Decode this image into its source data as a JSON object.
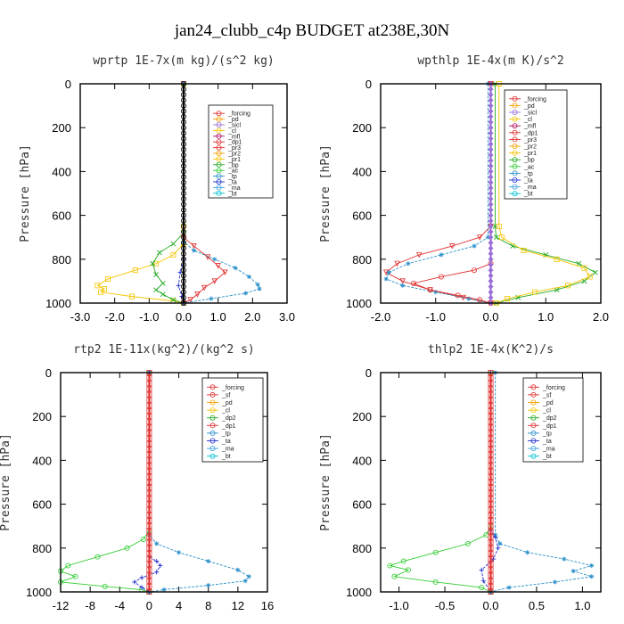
{
  "figure_title": "jan24_clubb_c4p  BUDGET at238E,30N",
  "chart_data": [
    {
      "type": "line",
      "title": "wprtp  1E-7x(m kg)/(s^2 kg)",
      "ylabel": "Pressure [hPa]",
      "xlim": [
        -3.0,
        3.0
      ],
      "ylim": [
        1000,
        0
      ],
      "xticks": [
        "-3.0",
        "-2.0",
        "-1.0",
        "0.0",
        "1.0",
        "2.0",
        "3.0"
      ],
      "xtick_values": [
        -3,
        -2,
        -1,
        0,
        1,
        2,
        3
      ],
      "yticks": [
        "0",
        "200",
        "400",
        "600",
        "800",
        "1000"
      ],
      "ytick_values": [
        0,
        200,
        400,
        600,
        800,
        1000
      ],
      "legend": [
        "_forcing",
        "_pd",
        "_sicl",
        "_cl",
        "_mfl",
        "_dp1",
        "_pr3",
        "_pr2",
        "_pr1",
        "_bp",
        "_ac",
        "_tp",
        "_ta",
        "_ma",
        "_bt"
      ],
      "series": [
        {
          "name": "_pr1",
          "color": "#f5c400",
          "marker": "square",
          "x": [
            0,
            0,
            0,
            -0.3,
            -0.8,
            -1.4,
            -2.2,
            -2.5,
            -2.3,
            -2.4,
            -1.5,
            -0.3,
            0
          ],
          "y": [
            0,
            650,
            730,
            780,
            820,
            850,
            890,
            920,
            935,
            950,
            970,
            990,
            1000
          ]
        },
        {
          "name": "_ac",
          "color": "#22aa22",
          "marker": "x",
          "x": [
            0,
            0,
            -0.3,
            -0.7,
            -0.9,
            -0.8,
            -0.6,
            -0.8,
            -0.6,
            -0.3,
            0
          ],
          "y": [
            0,
            680,
            730,
            770,
            820,
            870,
            910,
            940,
            960,
            985,
            1000
          ]
        },
        {
          "name": "_pr3",
          "color": "#e03030",
          "marker": "triangle-down",
          "x": [
            0,
            0,
            0.3,
            0.7,
            1.0,
            1.2,
            0.9,
            0.6,
            0.4,
            0.2,
            0
          ],
          "y": [
            0,
            700,
            740,
            790,
            830,
            860,
            900,
            930,
            960,
            985,
            1000
          ]
        },
        {
          "name": "_tp",
          "color": "#2a8fc8",
          "marker": "star",
          "x": [
            0,
            0,
            0.3,
            0.9,
            1.5,
            1.9,
            2.15,
            2.2,
            1.8,
            0.8,
            0
          ],
          "y": [
            0,
            720,
            760,
            800,
            840,
            880,
            915,
            935,
            955,
            980,
            1000
          ]
        },
        {
          "name": "_ta",
          "color": "#2030d0",
          "marker": "plus",
          "x": [
            0,
            0,
            -0.1,
            -0.15,
            -0.05,
            0
          ],
          "y": [
            0,
            800,
            860,
            920,
            970,
            1000
          ]
        },
        {
          "name": "_bt",
          "color": "#000000",
          "marker": "circle-open",
          "x": [
            0,
            0
          ],
          "y": [
            0,
            1000
          ]
        }
      ]
    },
    {
      "type": "line",
      "title": "wpthlp  1E-4x(m K)/s^2",
      "ylabel": "Pressure [hPa]",
      "xlim": [
        -2.0,
        2.0
      ],
      "ylim": [
        1000,
        0
      ],
      "xticks": [
        "-2.0",
        "-1.0",
        "0.0",
        "1.0",
        "2.0"
      ],
      "xtick_values": [
        -2,
        -1,
        0,
        1,
        2
      ],
      "yticks": [
        "0",
        "200",
        "400",
        "600",
        "800",
        "1000"
      ],
      "ytick_values": [
        0,
        200,
        400,
        600,
        800,
        1000
      ],
      "legend": [
        "_forcing",
        "_pd",
        "_sicl",
        "_cl",
        "_mfl",
        "_dp1",
        "_pr3",
        "_pr2",
        "_pr1",
        "_bp",
        "_ac",
        "_tp",
        "_ta",
        "_ma",
        "_bt"
      ],
      "series": [
        {
          "name": "_ac",
          "color": "#22aa22",
          "marker": "x",
          "x": [
            0.08,
            0.08,
            0.1,
            0.4,
            1.0,
            1.6,
            1.9,
            1.7,
            1.2,
            0.5,
            0.1
          ],
          "y": [
            0,
            650,
            700,
            740,
            780,
            820,
            860,
            900,
            940,
            975,
            1000
          ]
        },
        {
          "name": "_pr1",
          "color": "#f5c400",
          "marker": "square",
          "x": [
            0.15,
            0.15,
            0.2,
            0.6,
            1.2,
            1.7,
            1.8,
            1.4,
            0.8,
            0.3,
            0.1
          ],
          "y": [
            0,
            650,
            700,
            760,
            800,
            840,
            880,
            920,
            950,
            980,
            1000
          ]
        },
        {
          "name": "_pr3",
          "color": "#e03030",
          "marker": "triangle-down",
          "x": [
            0,
            0,
            -0.2,
            -0.7,
            -1.3,
            -1.7,
            -1.9,
            -1.6,
            -1.1,
            -0.5,
            0
          ],
          "y": [
            0,
            650,
            700,
            740,
            780,
            820,
            860,
            900,
            940,
            975,
            1000
          ]
        },
        {
          "name": "_tp",
          "color": "#2a8fc8",
          "marker": "star",
          "x": [
            -0.05,
            -0.05,
            -0.3,
            -0.9,
            -1.5,
            -1.85,
            -1.9,
            -1.6,
            -1.0,
            -0.4,
            0
          ],
          "y": [
            0,
            700,
            740,
            780,
            820,
            860,
            890,
            920,
            950,
            980,
            1000
          ]
        },
        {
          "name": "_dp1",
          "color": "#e03030",
          "marker": "circle-open",
          "x": [
            0,
            0,
            -0.3,
            -0.9,
            -1.4,
            -1.1,
            -0.6,
            -0.2,
            0
          ],
          "y": [
            0,
            820,
            850,
            880,
            910,
            940,
            965,
            985,
            1000
          ]
        },
        {
          "name": "_sicl",
          "color": "#9a6ed8",
          "marker": "diamond",
          "x": [
            0,
            0,
            0
          ],
          "y": [
            0,
            500,
            1000
          ]
        }
      ]
    },
    {
      "type": "line",
      "title": "rtp2  1E-11x(kg^2)/(kg^2 s)",
      "ylabel": "Pressure [hPa]",
      "xlim": [
        -12,
        16
      ],
      "ylim": [
        1000,
        0
      ],
      "xticks": [
        "-12",
        "-8",
        "-4",
        "0",
        "4",
        "8",
        "12",
        "16"
      ],
      "xtick_values": [
        -12,
        -8,
        -4,
        0,
        4,
        8,
        12,
        16
      ],
      "yticks": [
        "0",
        "200",
        "400",
        "600",
        "800",
        "1000"
      ],
      "ytick_values": [
        0,
        200,
        400,
        600,
        800,
        1000
      ],
      "legend": [
        "_forcing",
        "_sf",
        "_pd",
        "_cl",
        "_dp2",
        "_dp1",
        "_tp",
        "_ta",
        "_ma",
        "_bt"
      ],
      "series": [
        {
          "name": "_dp1",
          "color": "#33cc33",
          "marker": "circle-open",
          "x": [
            0,
            0,
            -0.8,
            -3,
            -7,
            -11,
            -12,
            -10,
            -12,
            -6,
            -1,
            0
          ],
          "y": [
            0,
            720,
            760,
            800,
            840,
            880,
            905,
            930,
            955,
            975,
            990,
            1000
          ]
        },
        {
          "name": "_tp",
          "color": "#2a8fc8",
          "marker": "star",
          "x": [
            0,
            0,
            1,
            4,
            8,
            12,
            13.5,
            13,
            8,
            2,
            0
          ],
          "y": [
            0,
            740,
            780,
            820,
            860,
            900,
            930,
            950,
            970,
            990,
            1000
          ]
        },
        {
          "name": "_ta",
          "color": "#2030d0",
          "marker": "plus",
          "x": [
            0,
            0,
            1,
            1.5,
            1,
            -1,
            -2,
            -1,
            0
          ],
          "y": [
            0,
            840,
            860,
            880,
            910,
            935,
            955,
            980,
            1000
          ]
        },
        {
          "name": "_forcing",
          "color": "#e03030",
          "marker": "square",
          "x": [
            0,
            0
          ],
          "y": [
            0,
            1000
          ]
        }
      ]
    },
    {
      "type": "line",
      "title": "thlp2  1E-4x(K^2)/s",
      "ylabel": "Pressure [hPa]",
      "xlim": [
        -1.2,
        1.2
      ],
      "ylim": [
        1000,
        0
      ],
      "xticks": [
        "-1.0",
        "-0.5",
        "0.0",
        "0.5",
        "1.0"
      ],
      "xtick_values": [
        -1,
        -0.5,
        0,
        0.5,
        1
      ],
      "yticks": [
        "0",
        "200",
        "400",
        "600",
        "800",
        "1000"
      ],
      "ytick_values": [
        0,
        200,
        400,
        600,
        800,
        1000
      ],
      "legend": [
        "_forcing",
        "_sf",
        "_pd",
        "_cl",
        "_dp2",
        "_dp1",
        "_tp",
        "_ta",
        "_ma",
        "_bt"
      ],
      "series": [
        {
          "name": "_dp1",
          "color": "#33cc33",
          "marker": "circle-open",
          "x": [
            0,
            0,
            -0.05,
            -0.25,
            -0.6,
            -0.95,
            -1.1,
            -0.9,
            -1.05,
            -0.6,
            -0.1,
            0
          ],
          "y": [
            0,
            700,
            740,
            780,
            820,
            860,
            880,
            900,
            930,
            955,
            980,
            1000
          ]
        },
        {
          "name": "_tp",
          "color": "#2a8fc8",
          "marker": "star",
          "x": [
            0.05,
            0.05,
            0.1,
            0.4,
            0.8,
            1.1,
            0.9,
            1.1,
            0.7,
            0.2,
            0
          ],
          "y": [
            0,
            740,
            780,
            820,
            850,
            880,
            905,
            930,
            955,
            980,
            1000
          ]
        },
        {
          "name": "_ta",
          "color": "#2030d0",
          "marker": "plus",
          "x": [
            0,
            0,
            0.05,
            0.08,
            0.03,
            -0.1,
            -0.08,
            0
          ],
          "y": [
            0,
            720,
            750,
            800,
            850,
            900,
            950,
            1000
          ]
        },
        {
          "name": "_forcing",
          "color": "#e03030",
          "marker": "square",
          "x": [
            0,
            0
          ],
          "y": [
            0,
            1000
          ]
        }
      ]
    }
  ]
}
